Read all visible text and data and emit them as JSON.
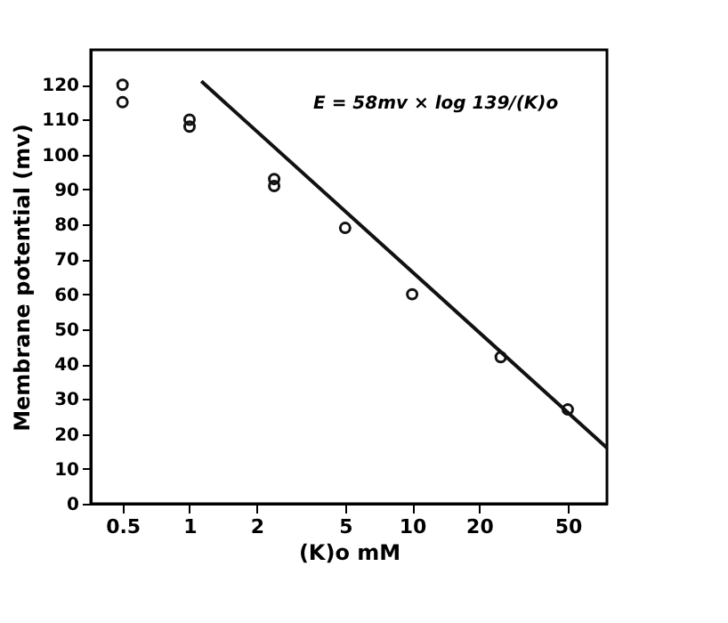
{
  "chart_data": {
    "type": "scatter",
    "xlabel": "(K)o mM",
    "ylabel": "Membrane potential (mv)",
    "annotations": [
      "E = 58mv × log 139/(K)o"
    ],
    "log": "x",
    "grid": false,
    "xlim": [
      0.36,
      75
    ],
    "xticks": [
      0.5,
      1,
      2,
      5,
      10,
      20,
      50
    ],
    "ylim": [
      0,
      130
    ],
    "yticks": [
      0,
      10,
      20,
      30,
      40,
      50,
      60,
      70,
      80,
      90,
      100,
      110,
      120
    ],
    "series": [
      {
        "marker": "circle",
        "color": "#111111",
        "x": [
          0.5,
          0.5,
          1,
          1,
          2.4,
          2.4,
          5,
          10,
          25,
          50
        ],
        "values": [
          120,
          115,
          110,
          108,
          93,
          91,
          79,
          60,
          42,
          27
        ]
      },
      {
        "type": "line",
        "color": "#111111",
        "line_style": "solid",
        "x": [
          1.13,
          75
        ],
        "values": [
          121,
          16
        ]
      }
    ]
  }
}
